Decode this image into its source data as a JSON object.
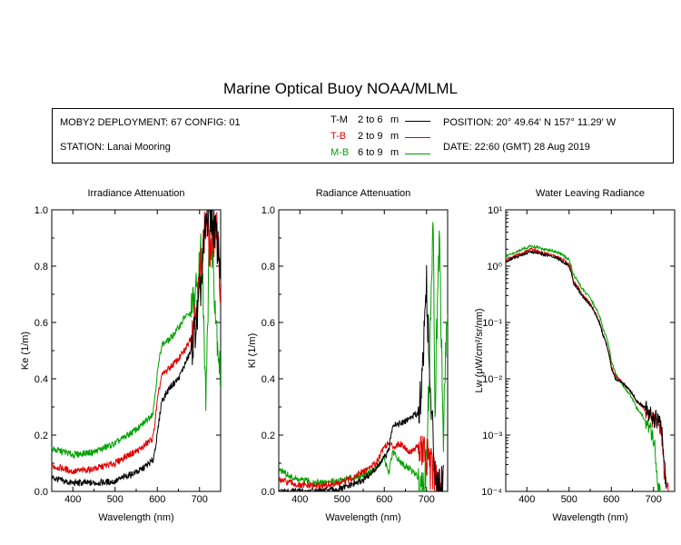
{
  "page_title": "Marine Optical Buoy NOAA/MLML",
  "info": {
    "deployment": "MOBY2 DEPLOYMENT: 67 CONFIG: 01",
    "station": "STATION: Lanai Mooring",
    "position": "POSITION: 20° 49.64' N   157° 11.29' W",
    "date": "DATE: 22:60 (GMT) 28 Aug 2019"
  },
  "legend": [
    {
      "label": "T-M",
      "range": "2 to 6",
      "unit": "m",
      "color": "#000000"
    },
    {
      "label": "T-B",
      "range": "2 to 9",
      "unit": "m",
      "color": "#e00000"
    },
    {
      "label": "M-B",
      "range": "6 to 9",
      "unit": "m",
      "color": "#00a000"
    }
  ],
  "chart_data": [
    {
      "type": "line",
      "title": "Irradiance Attenuation",
      "xlabel": "Wavelength (nm)",
      "ylabel": "Ke  (1/m)",
      "xlim": [
        350,
        750
      ],
      "ylim": [
        0,
        1
      ],
      "xticks": [
        400,
        500,
        600,
        700
      ],
      "yticks": [
        0.0,
        0.2,
        0.4,
        0.6,
        0.8,
        1.0
      ],
      "ytick_labels": [
        "0.0",
        "0.2",
        "0.4",
        "0.6",
        "0.8",
        "1.0"
      ],
      "log_y": false,
      "series": [
        {
          "name": "T-M",
          "color": "#000000",
          "x": [
            350,
            380,
            400,
            450,
            500,
            520,
            560,
            590,
            600,
            610,
            630,
            650,
            665,
            680,
            695,
            705,
            715,
            725,
            740,
            750
          ],
          "y": [
            0.05,
            0.035,
            0.03,
            0.03,
            0.035,
            0.05,
            0.075,
            0.11,
            0.2,
            0.32,
            0.37,
            0.4,
            0.45,
            0.5,
            0.62,
            0.75,
            0.95,
            1.0,
            0.9,
            0.8
          ]
        },
        {
          "name": "T-B",
          "color": "#e00000",
          "x": [
            350,
            380,
            400,
            450,
            500,
            520,
            560,
            590,
            600,
            610,
            630,
            650,
            665,
            680,
            695,
            705,
            715,
            725,
            740,
            750
          ],
          "y": [
            0.09,
            0.08,
            0.07,
            0.08,
            0.1,
            0.12,
            0.15,
            0.19,
            0.32,
            0.41,
            0.44,
            0.47,
            0.5,
            0.55,
            0.68,
            0.82,
            0.97,
            0.85,
            0.95,
            0.7
          ]
        },
        {
          "name": "M-B",
          "color": "#00a000",
          "x": [
            350,
            380,
            400,
            450,
            500,
            520,
            560,
            590,
            600,
            610,
            630,
            650,
            665,
            680,
            695,
            705,
            715,
            725,
            740,
            750
          ],
          "y": [
            0.15,
            0.14,
            0.13,
            0.14,
            0.17,
            0.19,
            0.23,
            0.28,
            0.42,
            0.52,
            0.54,
            0.58,
            0.62,
            0.63,
            0.72,
            0.88,
            0.35,
            1.0,
            0.6,
            0.4
          ]
        }
      ]
    },
    {
      "type": "line",
      "title": "Radiance Attenuation",
      "xlabel": "Wavelength (nm)",
      "ylabel": "Kl  (1/m)",
      "xlim": [
        350,
        750
      ],
      "ylim": [
        0,
        1
      ],
      "xticks": [
        400,
        500,
        600,
        700
      ],
      "yticks": [
        0.0,
        0.2,
        0.4,
        0.6,
        0.8,
        1.0
      ],
      "ytick_labels": [
        "0.0",
        "0.2",
        "0.4",
        "0.6",
        "0.8",
        "1.0"
      ],
      "log_y": false,
      "series": [
        {
          "name": "T-M",
          "color": "#000000",
          "x": [
            350,
            380,
            400,
            450,
            500,
            550,
            580,
            600,
            610,
            620,
            640,
            660,
            680,
            690,
            695,
            700,
            705,
            710,
            720,
            730,
            740
          ],
          "y": [
            0.0,
            0.0,
            0.0,
            0.0,
            0.01,
            0.04,
            0.08,
            0.12,
            0.14,
            0.24,
            0.24,
            0.26,
            0.28,
            0.4,
            0.6,
            0.75,
            0.5,
            0.3,
            0.1,
            0.0,
            0.05
          ]
        },
        {
          "name": "T-B",
          "color": "#e00000",
          "x": [
            350,
            380,
            400,
            450,
            500,
            550,
            580,
            600,
            610,
            620,
            640,
            660,
            680,
            690,
            700,
            710,
            720,
            730,
            740
          ],
          "y": [
            0.04,
            0.03,
            0.02,
            0.02,
            0.03,
            0.07,
            0.1,
            0.16,
            0.17,
            0.16,
            0.17,
            0.14,
            0.16,
            0.14,
            0.12,
            0.08,
            0.05,
            0.0,
            0.02
          ]
        },
        {
          "name": "M-B",
          "color": "#00a000",
          "x": [
            350,
            380,
            400,
            450,
            500,
            550,
            580,
            600,
            610,
            620,
            640,
            660,
            680,
            690,
            700,
            710,
            715,
            720,
            730,
            740,
            750
          ],
          "y": [
            0.08,
            0.05,
            0.04,
            0.03,
            0.04,
            0.06,
            0.08,
            0.12,
            0.06,
            0.14,
            0.1,
            0.08,
            0.05,
            0.02,
            0.1,
            0.6,
            1.0,
            0.3,
            0.9,
            0.2,
            0.7
          ]
        }
      ]
    },
    {
      "type": "line",
      "title": "Water Leaving Radiance",
      "xlabel": "Wavelength (nm)",
      "ylabel": "Lw  (μW/cm²/sr/nm)",
      "xlim": [
        350,
        750
      ],
      "ylim": [
        0.0001,
        10
      ],
      "xticks": [
        400,
        500,
        600,
        700
      ],
      "yticks": [
        10,
        1,
        0.1,
        0.01,
        0.001,
        0.0001
      ],
      "ytick_labels": [
        "10¹",
        "10⁰",
        "10⁻¹",
        "10⁻²",
        "10⁻³",
        "10⁻⁴"
      ],
      "log_y": true,
      "series": [
        {
          "name": "T-M",
          "color": "#000000",
          "x": [
            350,
            370,
            390,
            410,
            440,
            470,
            500,
            510,
            530,
            560,
            580,
            600,
            610,
            630,
            660,
            680,
            700,
            715,
            725,
            730
          ],
          "y": [
            1.2,
            1.4,
            1.6,
            1.8,
            1.6,
            1.4,
            1.0,
            0.5,
            0.3,
            0.15,
            0.06,
            0.015,
            0.01,
            0.008,
            0.004,
            0.003,
            0.002,
            0.0018,
            0.0003,
            0.0001
          ]
        },
        {
          "name": "T-B",
          "color": "#e00000",
          "x": [
            350,
            370,
            390,
            410,
            440,
            470,
            500,
            510,
            530,
            560,
            580,
            600,
            610,
            630,
            660,
            680,
            700,
            715,
            725,
            735
          ],
          "y": [
            1.3,
            1.5,
            1.7,
            2.0,
            1.7,
            1.5,
            1.1,
            0.55,
            0.32,
            0.16,
            0.06,
            0.016,
            0.011,
            0.008,
            0.004,
            0.0028,
            0.0018,
            0.0015,
            0.0002,
            0.0001
          ]
        },
        {
          "name": "M-B",
          "color": "#00a000",
          "x": [
            350,
            370,
            390,
            410,
            440,
            470,
            500,
            510,
            530,
            560,
            580,
            600,
            610,
            630,
            660,
            680,
            700,
            710,
            720
          ],
          "y": [
            1.5,
            1.7,
            2.0,
            2.3,
            2.0,
            1.8,
            1.3,
            0.7,
            0.4,
            0.2,
            0.08,
            0.02,
            0.012,
            0.007,
            0.003,
            0.0018,
            0.0008,
            0.0001,
            0.0001
          ]
        }
      ]
    }
  ]
}
